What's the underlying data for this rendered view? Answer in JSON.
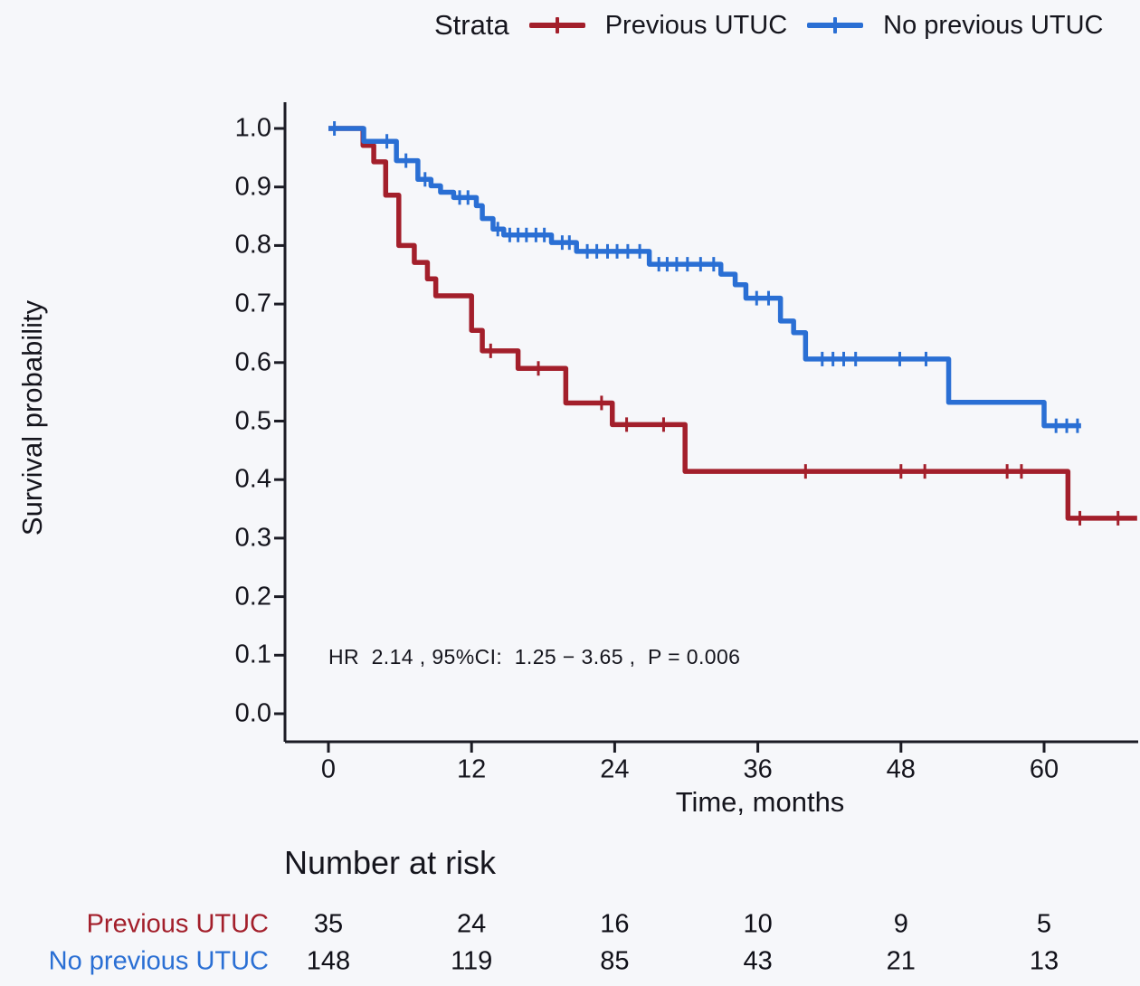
{
  "legend": {
    "title": "Strata",
    "items": [
      {
        "label": "Previous UTUC",
        "color": "#a31f2b"
      },
      {
        "label": "No previous UTUC",
        "color": "#2a6fd4"
      }
    ]
  },
  "axes": {
    "y_label": "Survival probability",
    "x_label": "Time, months",
    "y_ticks": [
      "1.0",
      "0.9",
      "0.8",
      "0.7",
      "0.6",
      "0.5",
      "0.4",
      "0.3",
      "0.2",
      "0.1",
      "0.0"
    ],
    "x_ticks": [
      0,
      12,
      24,
      36,
      48,
      60
    ]
  },
  "annotation": "HR  2.14 , 95%CI:  1.25 − 3.65 ,  P = 0.006",
  "risk_table": {
    "title": "Number at risk",
    "rows": [
      {
        "label": "Previous UTUC",
        "color": "#a31f2b",
        "values": [
          "35",
          "24",
          "16",
          "10",
          "9",
          "5"
        ]
      },
      {
        "label": "No previous UTUC",
        "color": "#2a6fd4",
        "values": [
          "148",
          "119",
          "85",
          "43",
          "21",
          "13"
        ]
      }
    ]
  },
  "colors": {
    "previous_utuc": "#a31f2b",
    "no_previous_utuc": "#2a6fd4",
    "axis": "#1b1b24",
    "background": "#f6f7fa"
  },
  "chart_data": {
    "type": "line",
    "subtype": "kaplan-meier-step",
    "title": "",
    "xlabel": "Time, months",
    "ylabel": "Survival probability",
    "xlim": [
      0,
      68
    ],
    "ylim": [
      0.0,
      1.0
    ],
    "x_ticks": [
      0,
      12,
      24,
      36,
      48,
      60
    ],
    "y_tick_step": 0.1,
    "grid": false,
    "legend_position": "top",
    "annotation": "HR 2.14 , 95%CI: 1.25 − 3.65 , P = 0.006",
    "series": [
      {
        "name": "Previous UTUC",
        "color": "#a31f2b",
        "n_start": 35,
        "steps": [
          [
            0,
            1.0
          ],
          [
            2.9,
            0.971
          ],
          [
            3.8,
            0.943
          ],
          [
            4.8,
            0.886
          ],
          [
            5.9,
            0.8
          ],
          [
            7.2,
            0.771
          ],
          [
            8.3,
            0.743
          ],
          [
            9.0,
            0.714
          ],
          [
            12.0,
            0.655
          ],
          [
            12.9,
            0.62
          ],
          [
            15.9,
            0.59
          ],
          [
            19.9,
            0.531
          ],
          [
            23.8,
            0.494
          ],
          [
            29.9,
            0.414
          ],
          [
            62.0,
            0.334
          ]
        ],
        "end_t": 67.8,
        "censors": [
          [
            13.6,
            0.62
          ],
          [
            17.6,
            0.59
          ],
          [
            22.9,
            0.531
          ],
          [
            25.0,
            0.494
          ],
          [
            28.1,
            0.494
          ],
          [
            40.0,
            0.414
          ],
          [
            48.0,
            0.414
          ],
          [
            50.0,
            0.414
          ],
          [
            56.9,
            0.414
          ],
          [
            58.1,
            0.414
          ],
          [
            63.0,
            0.334
          ],
          [
            66.2,
            0.334
          ]
        ]
      },
      {
        "name": "No previous UTUC",
        "color": "#2a6fd4",
        "n_start": 148,
        "steps": [
          [
            0,
            1.0
          ],
          [
            2.96,
            0.978
          ],
          [
            5.7,
            0.945
          ],
          [
            7.5,
            0.913
          ],
          [
            8.6,
            0.902
          ],
          [
            9.4,
            0.891
          ],
          [
            10.5,
            0.882
          ],
          [
            12.4,
            0.868
          ],
          [
            12.9,
            0.846
          ],
          [
            13.8,
            0.828
          ],
          [
            14.7,
            0.818
          ],
          [
            18.7,
            0.805
          ],
          [
            20.8,
            0.79
          ],
          [
            26.9,
            0.768
          ],
          [
            32.9,
            0.751
          ],
          [
            34.1,
            0.733
          ],
          [
            35.0,
            0.71
          ],
          [
            37.9,
            0.671
          ],
          [
            39.0,
            0.651
          ],
          [
            40.0,
            0.606
          ],
          [
            52.0,
            0.532
          ],
          [
            60.0,
            0.492
          ]
        ],
        "end_t": 63.1,
        "censors": [
          [
            0.5,
            1.0
          ],
          [
            4.9,
            0.978
          ],
          [
            6.5,
            0.945
          ],
          [
            8.1,
            0.913
          ],
          [
            11.0,
            0.882
          ],
          [
            11.7,
            0.882
          ],
          [
            14.2,
            0.828
          ],
          [
            15.2,
            0.818
          ],
          [
            15.9,
            0.818
          ],
          [
            16.6,
            0.818
          ],
          [
            17.4,
            0.818
          ],
          [
            18.1,
            0.818
          ],
          [
            19.6,
            0.805
          ],
          [
            20.2,
            0.805
          ],
          [
            21.7,
            0.79
          ],
          [
            22.5,
            0.79
          ],
          [
            23.4,
            0.79
          ],
          [
            24.2,
            0.79
          ],
          [
            25.1,
            0.79
          ],
          [
            26.1,
            0.79
          ],
          [
            27.7,
            0.768
          ],
          [
            28.4,
            0.768
          ],
          [
            29.2,
            0.768
          ],
          [
            30.1,
            0.768
          ],
          [
            31.2,
            0.768
          ],
          [
            32.3,
            0.768
          ],
          [
            35.9,
            0.71
          ],
          [
            36.9,
            0.71
          ],
          [
            41.4,
            0.606
          ],
          [
            42.3,
            0.606
          ],
          [
            43.2,
            0.606
          ],
          [
            44.2,
            0.606
          ],
          [
            47.9,
            0.606
          ],
          [
            50.1,
            0.606
          ],
          [
            61.0,
            0.492
          ],
          [
            61.9,
            0.492
          ],
          [
            62.8,
            0.492
          ]
        ]
      }
    ],
    "risk_table": {
      "title": "Number at risk",
      "times": [
        0,
        12,
        24,
        36,
        48,
        60
      ],
      "rows": [
        {
          "name": "Previous UTUC",
          "at_risk": [
            35,
            24,
            16,
            10,
            9,
            5
          ]
        },
        {
          "name": "No previous UTUC",
          "at_risk": [
            148,
            119,
            85,
            43,
            21,
            13
          ]
        }
      ]
    }
  }
}
